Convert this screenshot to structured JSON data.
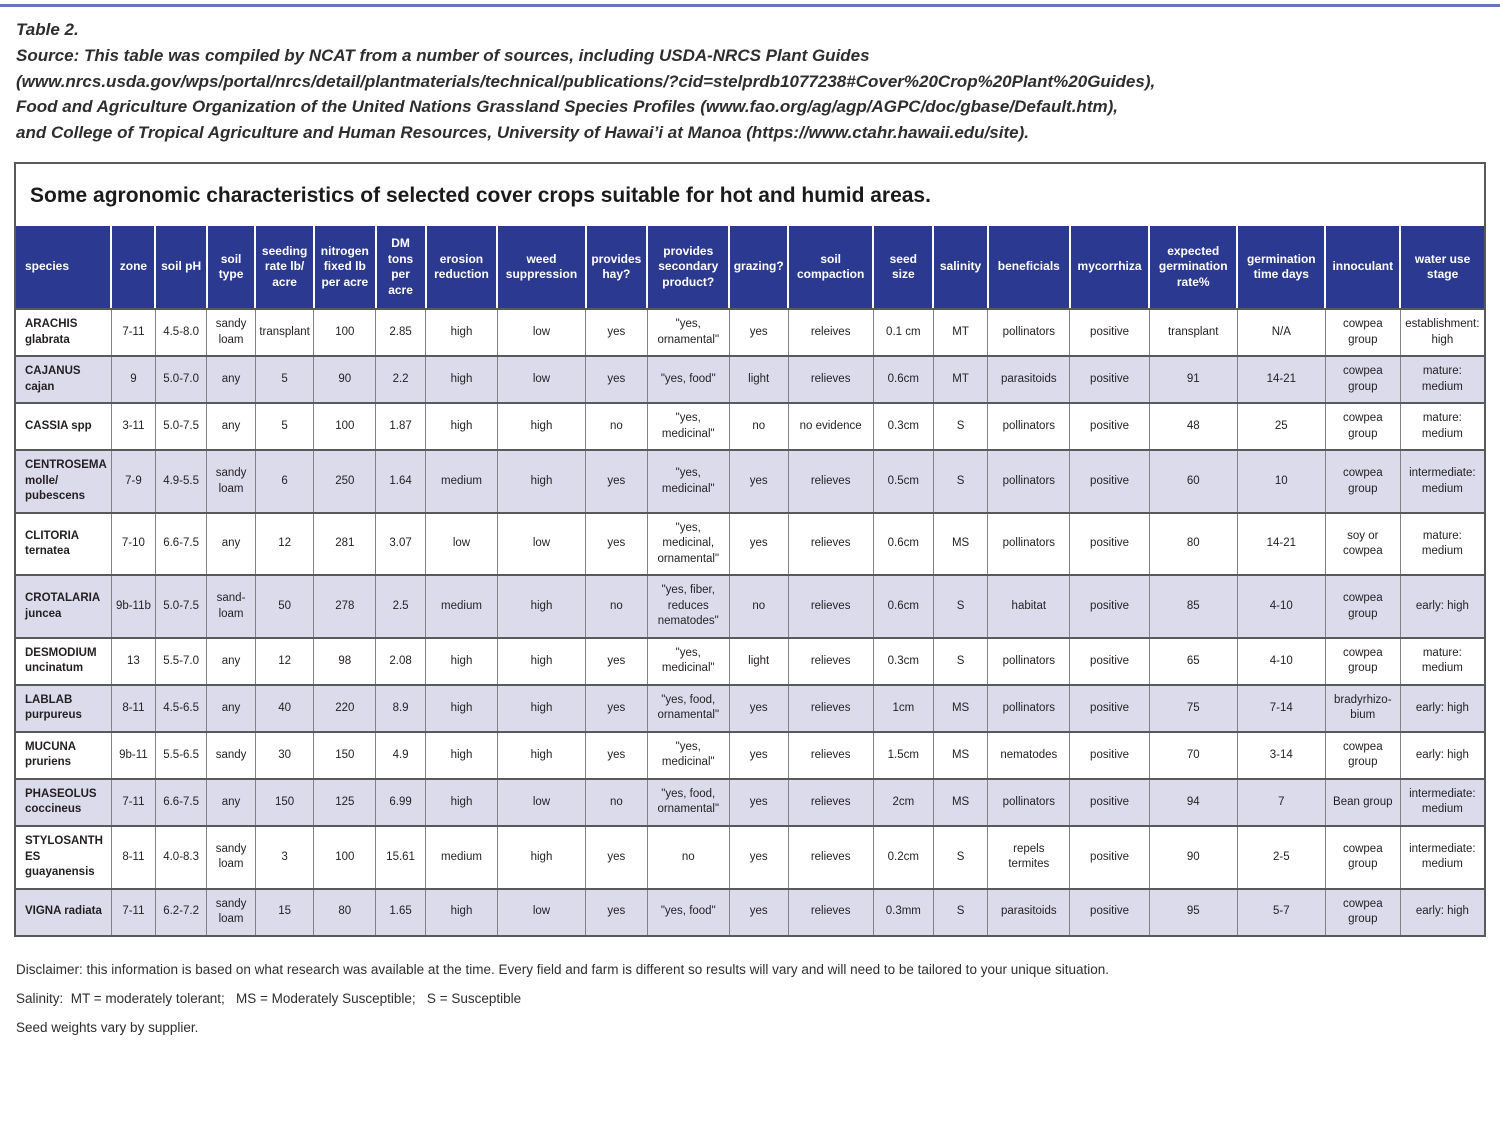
{
  "header": {
    "lines": [
      "Table 2.",
      "Source: This table was compiled by NCAT from a number of sources, including USDA-NRCS Plant Guides",
      "(www.nrcs.usda.gov/wps/portal/nrcs/detail/plantmaterials/technical/publications/?cid=stelprdb1077238#Cover%20Crop%20Plant%20Guides),",
      "Food and Agriculture Organization of the United Nations Grassland Species Profiles (www.fao.org/ag/agp/AGPC/doc/gbase/Default.htm),",
      "and College of Tropical Agriculture and Human Resources, University of Hawai’i at Manoa (https://www.ctahr.hawaii.edu/site)."
    ]
  },
  "table": {
    "title": "Some agronomic characteristics of selected cover crops suitable for hot and humid areas.",
    "columns": [
      "species",
      "zone",
      "soil pH",
      "soil type",
      "seeding rate lb/ acre",
      "nitrogen fixed lb per acre",
      "DM tons per acre",
      "erosion reduction",
      "weed suppression",
      "provides hay?",
      "provides secondary product?",
      "grazing?",
      "soil compaction",
      "seed size",
      "salinity",
      "beneficials",
      "mycorrhiza",
      "expected germination rate%",
      "germination time days",
      "innoculant",
      "water use stage"
    ],
    "rows": [
      [
        "ARACHIS glabrata",
        "7-11",
        "4.5-8.0",
        "sandy loam",
        "transplant",
        "100",
        "2.85",
        "high",
        "low",
        "yes",
        "\"yes, ornamental\"",
        "yes",
        "releives",
        "0.1 cm",
        "MT",
        "pollinators",
        "positive",
        "transplant",
        "N/A",
        "cowpea group",
        "establishment: high"
      ],
      [
        "CAJANUS cajan",
        "9",
        "5.0-7.0",
        "any",
        "5",
        "90",
        "2.2",
        "high",
        "low",
        "yes",
        "\"yes, food\"",
        "light",
        "relieves",
        "0.6cm",
        "MT",
        "parasitoids",
        "positive",
        "91",
        "14-21",
        "cowpea group",
        "mature: medium"
      ],
      [
        "CASSIA spp",
        "3-11",
        "5.0-7.5",
        "any",
        "5",
        "100",
        "1.87",
        "high",
        "high",
        "no",
        "\"yes, medicinal\"",
        "no",
        "no evidence",
        "0.3cm",
        "S",
        "pollinators",
        "positive",
        "48",
        "25",
        "cowpea group",
        "mature: medium"
      ],
      [
        "CENTROSEMA molle/ pubescens",
        "7-9",
        "4.9-5.5",
        "sandy loam",
        "6",
        "250",
        "1.64",
        "medium",
        "high",
        "yes",
        "\"yes, medicinal\"",
        "yes",
        "relieves",
        "0.5cm",
        "S",
        "pollinators",
        "positive",
        "60",
        "10",
        "cowpea group",
        "intermediate: medium"
      ],
      [
        "CLITORIA ternatea",
        "7-10",
        "6.6-7.5",
        "any",
        "12",
        "281",
        "3.07",
        "low",
        "low",
        "yes",
        "\"yes, medicinal, ornamental\"",
        "yes",
        "relieves",
        "0.6cm",
        "MS",
        "pollinators",
        "positive",
        "80",
        "14-21",
        "soy or cowpea",
        "mature: medium"
      ],
      [
        "CROTALARIA juncea",
        "9b-11b",
        "5.0-7.5",
        "sand-loam",
        "50",
        "278",
        "2.5",
        "medium",
        "high",
        "no",
        "\"yes, fiber, reduces nematodes\"",
        "no",
        "relieves",
        "0.6cm",
        "S",
        "habitat",
        "positive",
        "85",
        "4-10",
        "cowpea group",
        "early: high"
      ],
      [
        "DESMODIUM uncinatum",
        "13",
        "5.5-7.0",
        "any",
        "12",
        "98",
        "2.08",
        "high",
        "high",
        "yes",
        "\"yes, medicinal\"",
        "light",
        "relieves",
        "0.3cm",
        "S",
        "pollinators",
        "positive",
        "65",
        "4-10",
        "cowpea group",
        "mature: medium"
      ],
      [
        "LABLAB purpureus",
        "8-11",
        "4.5-6.5",
        "any",
        "40",
        "220",
        "8.9",
        "high",
        "high",
        "yes",
        "\"yes, food, ornamental\"",
        "yes",
        "relieves",
        "1cm",
        "MS",
        "pollinators",
        "positive",
        "75",
        "7-14",
        "bradyrhizo-bium",
        "early: high"
      ],
      [
        "MUCUNA pruriens",
        "9b-11",
        "5.5-6.5",
        "sandy",
        "30",
        "150",
        "4.9",
        "high",
        "high",
        "yes",
        "\"yes, medicinal\"",
        "yes",
        "relieves",
        "1.5cm",
        "MS",
        "nematodes",
        "positive",
        "70",
        "3-14",
        "cowpea group",
        "early: high"
      ],
      [
        "PHASEOLUS coccineus",
        "7-11",
        "6.6-7.5",
        "any",
        "150",
        "125",
        "6.99",
        "high",
        "low",
        "no",
        "\"yes, food, ornamental\"",
        "yes",
        "relieves",
        "2cm",
        "MS",
        "pollinators",
        "positive",
        "94",
        "7",
        "Bean group",
        "intermediate: medium"
      ],
      [
        "STYLOSANTHES guayanensis",
        "8-11",
        "4.0-8.3",
        "sandy loam",
        "3",
        "100",
        "15.61",
        "medium",
        "high",
        "yes",
        "no",
        "yes",
        "relieves",
        "0.2cm",
        "S",
        "repels termites",
        "positive",
        "90",
        "2-5",
        "cowpea group",
        "intermediate: medium"
      ],
      [
        "VIGNA radiata",
        "7-11",
        "6.2-7.2",
        "sandy loam",
        "15",
        "80",
        "1.65",
        "high",
        "low",
        "yes",
        "\"yes, food\"",
        "yes",
        "relieves",
        "0.3mm",
        "S",
        "parasitoids",
        "positive",
        "95",
        "5-7",
        "cowpea group",
        "early: high"
      ]
    ]
  },
  "footer": {
    "lines": [
      "Disclaimer: this information is based on what research was available at the time. Every field and farm is different so results will vary and will need to be tailored to your unique situation.",
      "Salinity:  MT = moderately tolerant;   MS = Moderately Susceptible;   S = Susceptible",
      "Seed weights vary by supplier."
    ]
  },
  "colors": {
    "header_bg": "#2b3990",
    "row_alt_bg": "#dcdbec",
    "top_rule": "#6673c2",
    "border_dark": "#58595b"
  }
}
